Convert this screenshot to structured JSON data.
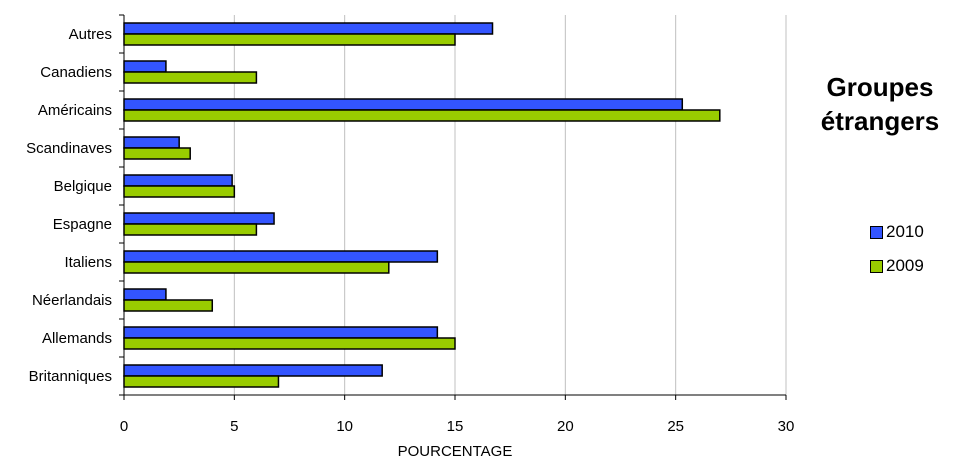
{
  "chart_data": {
    "type": "bar",
    "orientation": "horizontal",
    "title_lines": [
      "Groupes",
      "étrangers"
    ],
    "xlabel": "POURCENTAGE",
    "ylabel": "",
    "xlim": [
      0,
      30
    ],
    "xticks": [
      0,
      5,
      10,
      15,
      20,
      25,
      30
    ],
    "grid": "vertical",
    "legend_position": "right",
    "categories": [
      "Autres",
      "Canadiens",
      "Américains",
      "Scandinaves",
      "Belgique",
      "Espagne",
      "Italiens",
      "Néerlandais",
      "Allemands",
      "Britanniques"
    ],
    "series": [
      {
        "name": "2010",
        "color": "#3355ff",
        "values": [
          16.7,
          1.9,
          25.3,
          2.5,
          4.9,
          6.8,
          14.2,
          1.9,
          14.2,
          11.7
        ]
      },
      {
        "name": "2009",
        "color": "#99cc00",
        "values": [
          15.0,
          6.0,
          27.0,
          3.0,
          5.0,
          6.0,
          12.0,
          4.0,
          15.0,
          7.0
        ]
      }
    ]
  }
}
